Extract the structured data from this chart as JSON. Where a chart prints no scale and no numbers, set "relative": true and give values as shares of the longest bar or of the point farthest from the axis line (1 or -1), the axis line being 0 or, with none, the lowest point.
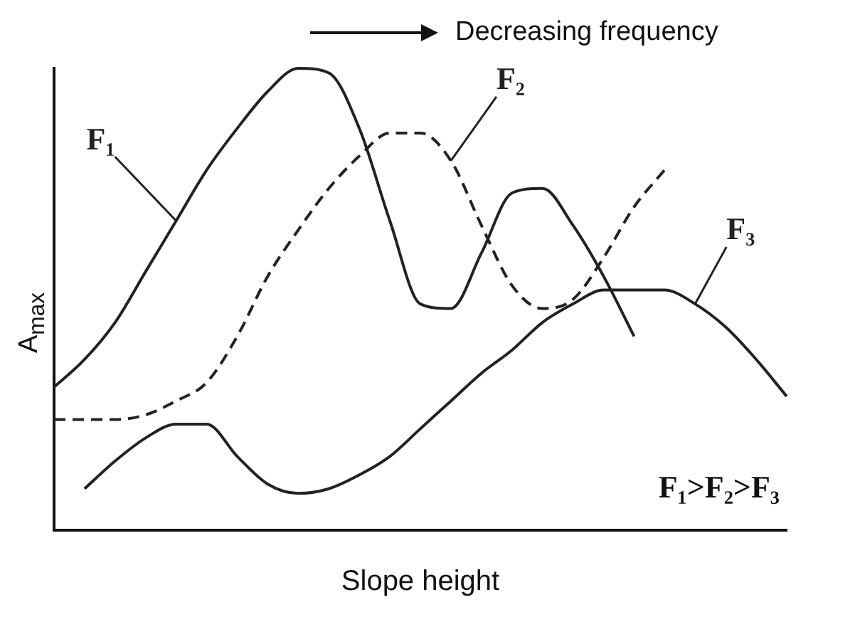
{
  "chart_data": {
    "type": "line",
    "relative": true,
    "title": "Decreasing frequency",
    "xlabel": "Slope height",
    "ylabel": "A$_{max}$",
    "annotations": [
      "F₁>F₂>F₃"
    ],
    "legend": false,
    "grid": false,
    "marker": "none",
    "categories": [
      null,
      null,
      null,
      null,
      null,
      null,
      null,
      null,
      null,
      null,
      null,
      null,
      null,
      null,
      null,
      null,
      null,
      null,
      null,
      null,
      null,
      null,
      null,
      null,
      null
    ],
    "series": [
      {
        "name": "F₁",
        "color": "#222222",
        "line_style": "solid",
        "values": [
          0.31,
          0.37,
          0.45,
          0.56,
          0.67,
          0.78,
          0.87,
          0.95,
          1.0,
          0.99,
          0.87,
          0.67,
          0.49,
          0.48,
          0.6,
          0.73,
          0.74,
          0.66,
          0.55,
          0.42,
          null,
          null,
          null,
          null,
          null
        ]
      },
      {
        "name": "F₂",
        "color": "#222222",
        "line_style": "dashed",
        "values": [
          0.24,
          0.24,
          0.24,
          0.25,
          0.28,
          0.32,
          0.42,
          0.55,
          0.65,
          0.74,
          0.81,
          0.86,
          0.86,
          0.8,
          0.66,
          0.53,
          0.48,
          0.5,
          0.59,
          0.7,
          0.78,
          null,
          null,
          null,
          null
        ]
      },
      {
        "name": "F₃",
        "color": "#222222",
        "line_style": "solid",
        "values": [
          null,
          0.09,
          0.15,
          0.2,
          0.23,
          0.23,
          0.16,
          0.1,
          0.08,
          0.09,
          0.12,
          0.16,
          0.22,
          0.28,
          0.34,
          0.39,
          0.45,
          0.49,
          0.52,
          0.52,
          0.52,
          0.49,
          0.44,
          0.37,
          0.29
        ]
      }
    ]
  }
}
